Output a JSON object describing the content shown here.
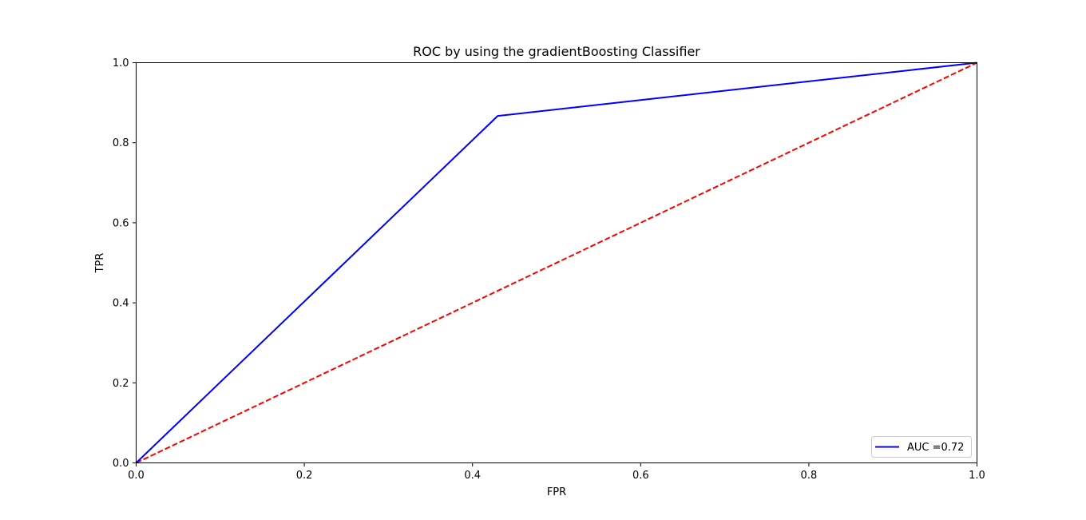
{
  "chart_data": {
    "type": "line",
    "title": "ROC by using the gradientBoosting Classifier",
    "xlabel": "FPR",
    "ylabel": "TPR",
    "xlim": [
      0,
      1
    ],
    "ylim": [
      0,
      1
    ],
    "xticks": [
      "0.0",
      "0.2",
      "0.4",
      "0.6",
      "0.8",
      "1.0"
    ],
    "yticks": [
      "0.0",
      "0.2",
      "0.4",
      "0.6",
      "0.8",
      "1.0"
    ],
    "grid": false,
    "legend_position": "lower-right",
    "series": [
      {
        "name": "AUC =0.72",
        "color": "#0000ff",
        "style": "solid",
        "x": [
          0.0,
          0.43,
          1.0
        ],
        "y": [
          0.0,
          0.867,
          1.0
        ]
      },
      {
        "color": "#ff0000",
        "style": "dashed",
        "x": [
          0.0,
          1.0
        ],
        "y": [
          0.0,
          1.0
        ]
      }
    ]
  }
}
